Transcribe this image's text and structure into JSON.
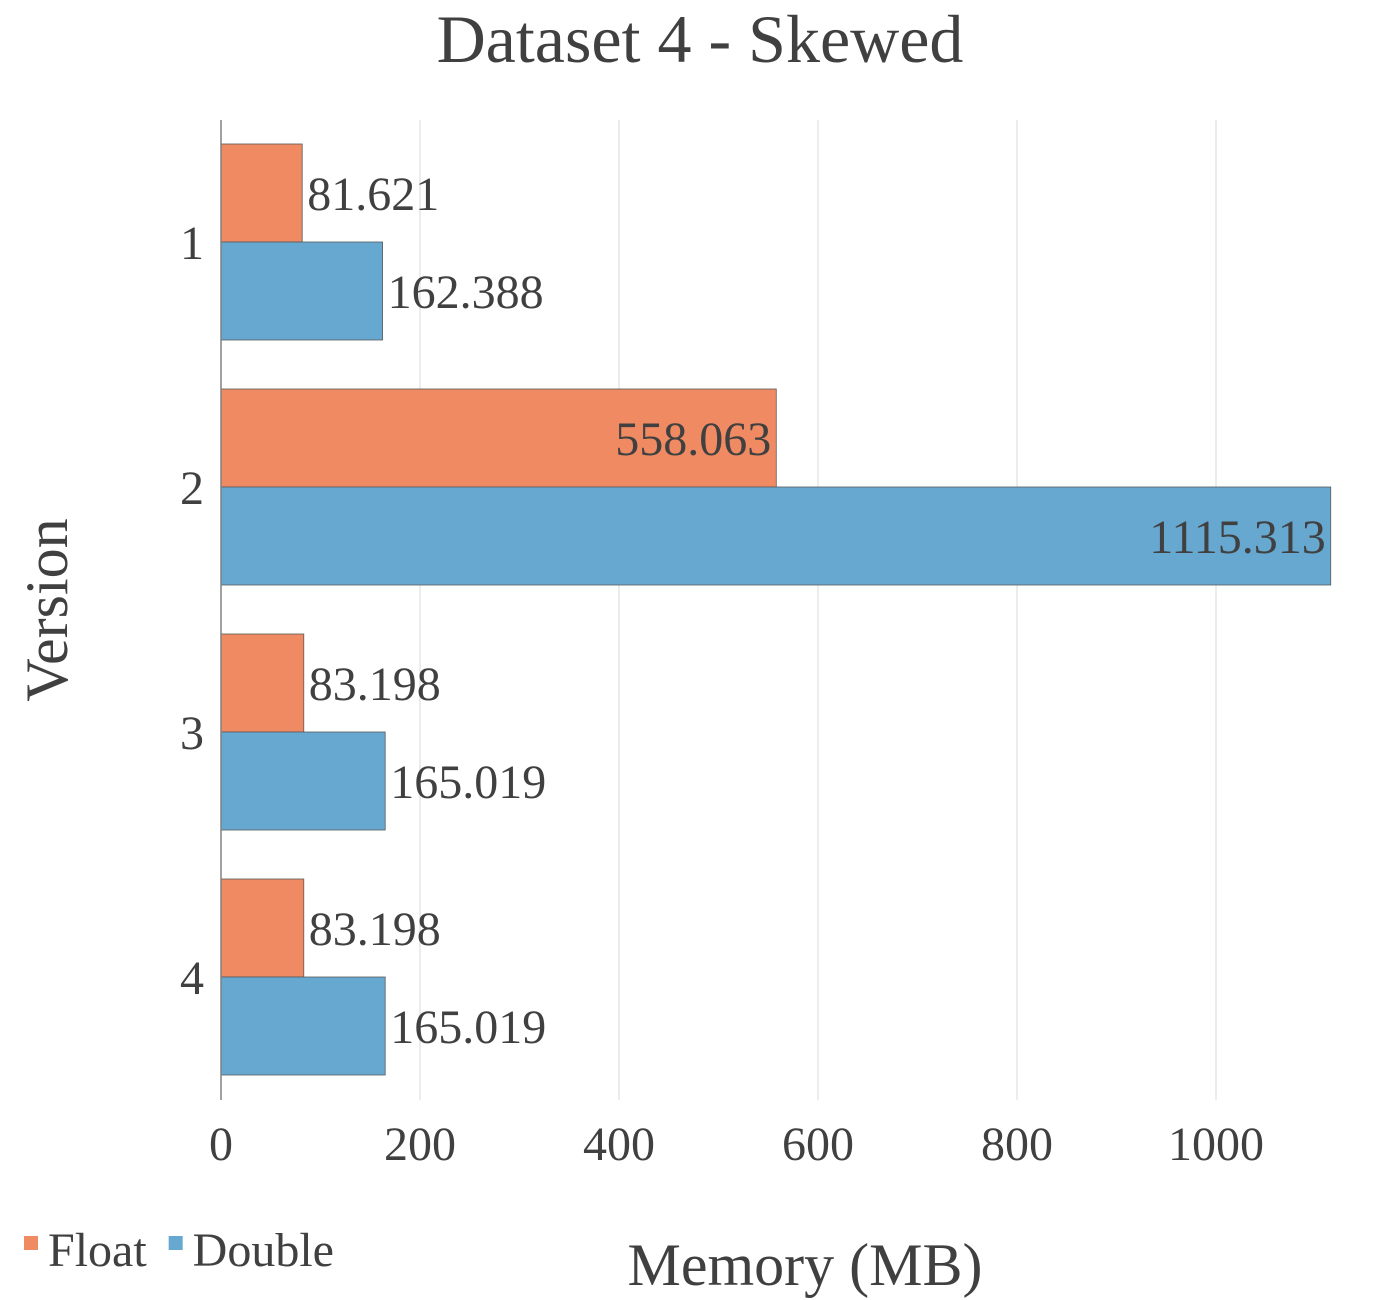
{
  "chart_data": {
    "type": "bar",
    "orientation": "horizontal",
    "title": "Dataset 4 - Skewed",
    "xlabel": "Memory (MB)",
    "ylabel": "Version",
    "categories": [
      "1",
      "2",
      "3",
      "4"
    ],
    "series": [
      {
        "name": "Float",
        "color": "#F08A63",
        "values": [
          81.621,
          558.063,
          83.198,
          83.198
        ],
        "labels": [
          "81.621",
          "558.063",
          "83.198",
          "83.198"
        ]
      },
      {
        "name": "Double",
        "color": "#67A8D0",
        "values": [
          162.388,
          1115.313,
          165.019,
          165.019
        ],
        "labels": [
          "162.388",
          "1115.313",
          "165.019",
          "165.019"
        ]
      }
    ],
    "xlim": [
      0,
      1120
    ],
    "xticks": [
      "0",
      "200",
      "400",
      "600",
      "800",
      "1000"
    ],
    "xtick_values": [
      0,
      200,
      400,
      600,
      800,
      1000
    ],
    "grid": true,
    "legend": "bottom-left"
  }
}
